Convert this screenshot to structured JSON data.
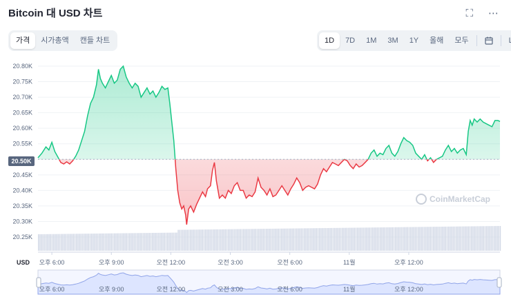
{
  "title": "Bitcoin 대 USD 차트",
  "icons": {
    "fullscreen": "expand-icon",
    "more": "more-icon"
  },
  "left_tabs": [
    {
      "label": "가격",
      "active": true
    },
    {
      "label": "시가총액",
      "active": false
    },
    {
      "label": "캔들 차트",
      "active": false
    }
  ],
  "range_tabs": [
    {
      "label": "1D",
      "active": true
    },
    {
      "label": "7D",
      "active": false
    },
    {
      "label": "1M",
      "active": false
    },
    {
      "label": "3M",
      "active": false
    },
    {
      "label": "1Y",
      "active": false
    },
    {
      "label": "올해",
      "active": false
    },
    {
      "label": "모두",
      "active": false
    }
  ],
  "calendar_icon": "calendar-icon",
  "log_label": "LOG",
  "currency_label": "USD",
  "current_price_tag": "20.50K",
  "watermark": "CoinMarketCap",
  "colors": {
    "up": "#16c784",
    "down": "#ea3943",
    "volume": "#cfd6e4",
    "navigator": "#dde5ff"
  },
  "chart_data": {
    "type": "area",
    "y_ticks": [
      "20.80K",
      "20.75K",
      "20.70K",
      "20.65K",
      "20.60K",
      "20.55K",
      "20.50K",
      "20.45K",
      "20.40K",
      "20.35K",
      "20.30K",
      "20.25K"
    ],
    "ylim": [
      20250,
      20800
    ],
    "baseline": 20500,
    "x_ticks": [
      "오후 6:00",
      "오후 9:00",
      "오전 12:00",
      "오전 3:00",
      "오전 6:00",
      "11월",
      "오후 12:00"
    ],
    "x_tick_hours": [
      6,
      9,
      12,
      15,
      18,
      21,
      24
    ],
    "xlim": [
      5.3,
      28.6
    ],
    "series": [
      {
        "values": [
          [
            5.3,
            20505
          ],
          [
            5.5,
            20520
          ],
          [
            5.7,
            20540
          ],
          [
            5.85,
            20530
          ],
          [
            6.0,
            20555
          ],
          [
            6.15,
            20525
          ],
          [
            6.3,
            20508
          ],
          [
            6.45,
            20490
          ],
          [
            6.6,
            20485
          ],
          [
            6.75,
            20492
          ],
          [
            6.9,
            20485
          ],
          [
            7.05,
            20495
          ],
          [
            7.2,
            20510
          ],
          [
            7.35,
            20530
          ],
          [
            7.5,
            20560
          ],
          [
            7.65,
            20590
          ],
          [
            7.8,
            20640
          ],
          [
            7.95,
            20680
          ],
          [
            8.1,
            20700
          ],
          [
            8.25,
            20740
          ],
          [
            8.35,
            20790
          ],
          [
            8.45,
            20760
          ],
          [
            8.55,
            20745
          ],
          [
            8.7,
            20730
          ],
          [
            8.85,
            20750
          ],
          [
            9.0,
            20770
          ],
          [
            9.15,
            20745
          ],
          [
            9.3,
            20755
          ],
          [
            9.45,
            20790
          ],
          [
            9.6,
            20800
          ],
          [
            9.75,
            20765
          ],
          [
            9.9,
            20745
          ],
          [
            10.05,
            20730
          ],
          [
            10.2,
            20745
          ],
          [
            10.35,
            20735
          ],
          [
            10.5,
            20700
          ],
          [
            10.65,
            20715
          ],
          [
            10.8,
            20730
          ],
          [
            10.95,
            20710
          ],
          [
            11.1,
            20720
          ],
          [
            11.25,
            20700
          ],
          [
            11.4,
            20715
          ],
          [
            11.55,
            20735
          ],
          [
            11.7,
            20725
          ],
          [
            11.85,
            20730
          ],
          [
            11.95,
            20680
          ],
          [
            12.05,
            20620
          ],
          [
            12.15,
            20560
          ],
          [
            12.25,
            20470
          ],
          [
            12.35,
            20400
          ],
          [
            12.45,
            20360
          ],
          [
            12.55,
            20340
          ],
          [
            12.65,
            20350
          ],
          [
            12.75,
            20320
          ],
          [
            12.8,
            20290
          ],
          [
            12.9,
            20340
          ],
          [
            13.0,
            20350
          ],
          [
            13.15,
            20330
          ],
          [
            13.3,
            20355
          ],
          [
            13.45,
            20375
          ],
          [
            13.6,
            20395
          ],
          [
            13.75,
            20380
          ],
          [
            13.85,
            20405
          ],
          [
            14.0,
            20415
          ],
          [
            14.1,
            20465
          ],
          [
            14.2,
            20490
          ],
          [
            14.3,
            20430
          ],
          [
            14.45,
            20375
          ],
          [
            14.6,
            20385
          ],
          [
            14.75,
            20375
          ],
          [
            14.9,
            20400
          ],
          [
            15.05,
            20390
          ],
          [
            15.2,
            20415
          ],
          [
            15.35,
            20425
          ],
          [
            15.5,
            20400
          ],
          [
            15.65,
            20400
          ],
          [
            15.8,
            20375
          ],
          [
            15.95,
            20385
          ],
          [
            16.1,
            20380
          ],
          [
            16.25,
            20395
          ],
          [
            16.4,
            20440
          ],
          [
            16.55,
            20410
          ],
          [
            16.7,
            20400
          ],
          [
            16.85,
            20385
          ],
          [
            17.0,
            20405
          ],
          [
            17.15,
            20380
          ],
          [
            17.3,
            20385
          ],
          [
            17.45,
            20400
          ],
          [
            17.6,
            20415
          ],
          [
            17.75,
            20400
          ],
          [
            17.9,
            20385
          ],
          [
            18.05,
            20405
          ],
          [
            18.2,
            20420
          ],
          [
            18.35,
            20440
          ],
          [
            18.5,
            20425
          ],
          [
            18.65,
            20400
          ],
          [
            18.8,
            20410
          ],
          [
            18.95,
            20415
          ],
          [
            19.1,
            20410
          ],
          [
            19.25,
            20405
          ],
          [
            19.4,
            20420
          ],
          [
            19.55,
            20450
          ],
          [
            19.7,
            20470
          ],
          [
            19.85,
            20460
          ],
          [
            20.0,
            20475
          ],
          [
            20.15,
            20490
          ],
          [
            20.3,
            20485
          ],
          [
            20.45,
            20480
          ],
          [
            20.6,
            20490
          ],
          [
            20.75,
            20500
          ],
          [
            20.9,
            20495
          ],
          [
            21.05,
            20480
          ],
          [
            21.2,
            20470
          ],
          [
            21.35,
            20485
          ],
          [
            21.5,
            20475
          ],
          [
            21.65,
            20480
          ],
          [
            21.8,
            20490
          ],
          [
            21.95,
            20500
          ],
          [
            22.1,
            20520
          ],
          [
            22.25,
            20530
          ],
          [
            22.4,
            20510
          ],
          [
            22.55,
            20520
          ],
          [
            22.7,
            20515
          ],
          [
            22.85,
            20535
          ],
          [
            23.0,
            20545
          ],
          [
            23.15,
            20520
          ],
          [
            23.3,
            20510
          ],
          [
            23.45,
            20525
          ],
          [
            23.6,
            20550
          ],
          [
            23.75,
            20570
          ],
          [
            23.9,
            20560
          ],
          [
            24.05,
            20555
          ],
          [
            24.2,
            20545
          ],
          [
            24.35,
            20520
          ],
          [
            24.5,
            20510
          ],
          [
            24.65,
            20500
          ],
          [
            24.8,
            20515
          ],
          [
            24.95,
            20495
          ],
          [
            25.1,
            20505
          ],
          [
            25.25,
            20490
          ],
          [
            25.4,
            20500
          ],
          [
            25.55,
            20505
          ],
          [
            25.7,
            20510
          ],
          [
            25.85,
            20530
          ],
          [
            26.0,
            20545
          ],
          [
            26.15,
            20525
          ],
          [
            26.3,
            20535
          ],
          [
            26.45,
            20520
          ],
          [
            26.6,
            20530
          ],
          [
            26.75,
            20535
          ],
          [
            26.9,
            20515
          ],
          [
            27.0,
            20590
          ],
          [
            27.1,
            20625
          ],
          [
            27.2,
            20610
          ],
          [
            27.3,
            20630
          ],
          [
            27.45,
            20620
          ],
          [
            27.6,
            20630
          ],
          [
            27.75,
            20620
          ],
          [
            27.9,
            20615
          ],
          [
            28.05,
            20610
          ],
          [
            28.2,
            20605
          ],
          [
            28.35,
            20625
          ],
          [
            28.5,
            20625
          ],
          [
            28.6,
            20622
          ]
        ]
      }
    ]
  }
}
